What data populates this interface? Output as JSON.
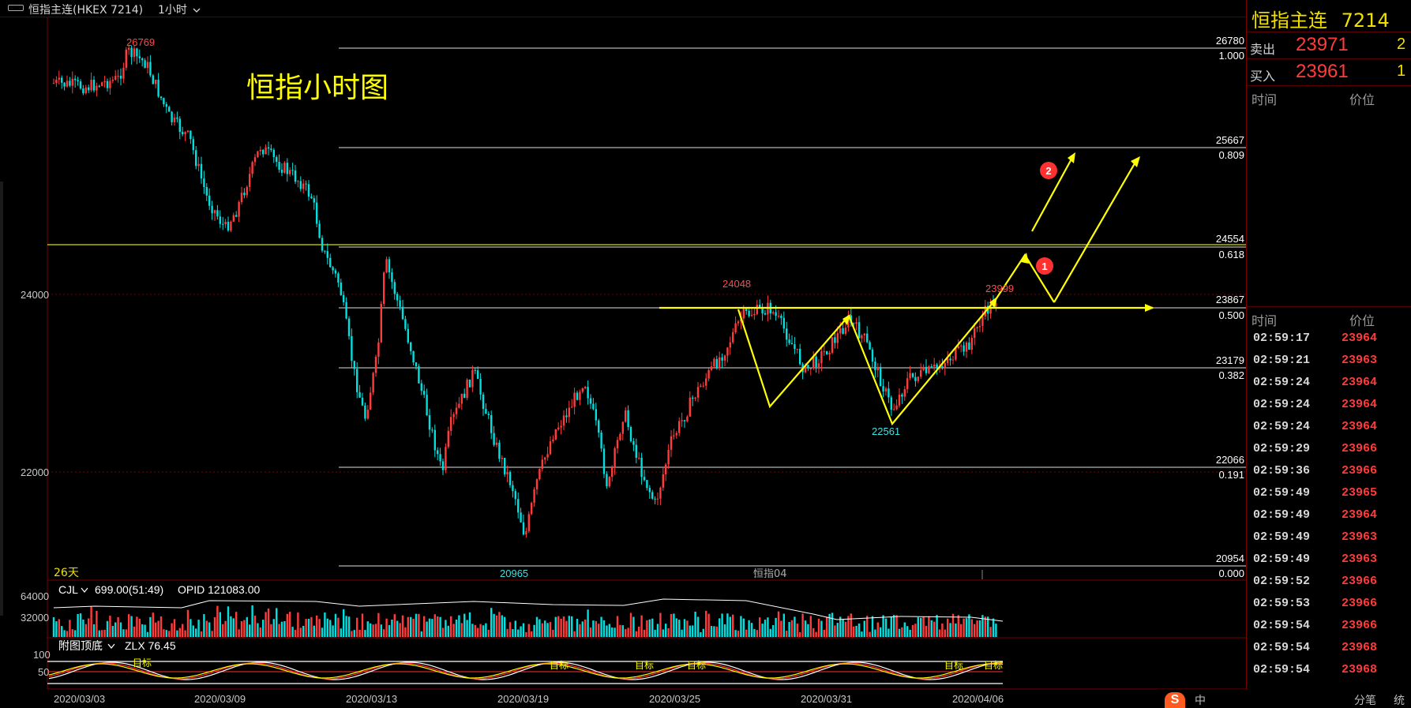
{
  "window": {
    "symbol_title": "恒指主连(HKEX 7214)",
    "period_label": "1小时",
    "period_dropdown_icon": "chevron-down-icon"
  },
  "chart_label": "恒指小时图",
  "colors": {
    "background": "#000000",
    "up_candle": "#ff3b3b",
    "down_candle": "#00e0e0",
    "annotation": "#ffff00",
    "fib_line": "#ffffff",
    "grid_red": "#7a0000",
    "ma_line": "#ffffff"
  },
  "price_axis": {
    "ticks": [
      "24000",
      "22000"
    ],
    "tick_values": [
      24000,
      22000
    ]
  },
  "time_axis": {
    "labels": [
      "2020/03/03",
      "2020/03/09",
      "2020/03/13",
      "2020/03/19",
      "2020/03/25",
      "2020/03/31",
      "2020/04/06"
    ]
  },
  "fibonacci": [
    {
      "price": "26780",
      "ratio": "1.000",
      "value": 26780
    },
    {
      "price": "25667",
      "ratio": "0.809",
      "value": 25667
    },
    {
      "price": "24554",
      "ratio": "0.618",
      "value": 24554
    },
    {
      "price": "23867",
      "ratio": "0.500",
      "value": 23867
    },
    {
      "price": "23179",
      "ratio": "0.382",
      "value": 23179
    },
    {
      "price": "22066",
      "ratio": "0.191",
      "value": 22066
    },
    {
      "price": "20954",
      "ratio": "0.000",
      "value": 20954
    }
  ],
  "price_labels": {
    "high_label": "26769",
    "low_label": "20965",
    "peak_label": "24048",
    "trough_label": "22561",
    "last_label": "23999"
  },
  "markers": {
    "marker_1": "1",
    "marker_2": "2"
  },
  "chart_footer": {
    "days": "26天",
    "contract": "恒指04"
  },
  "volume_panel": {
    "indicator": "CJL",
    "info": "699.00(51:49)",
    "opid": "OPID 121083.00",
    "ticks": [
      "64000",
      "32000"
    ]
  },
  "sub_panel": {
    "indicator": "附图顶底",
    "zlx": "ZLX 76.45",
    "ticks": [
      "100",
      "50"
    ],
    "marker_text": "目标"
  },
  "quote_panel": {
    "title": "恒指主连",
    "code": "7214",
    "sell_label": "卖出",
    "sell_price": "23971",
    "sell_extra": "2",
    "buy_label": "买入",
    "buy_price": "23961",
    "buy_extra": "1",
    "col_time": "时间",
    "col_price": "价位"
  },
  "tick_list": {
    "col_time": "时间",
    "col_price": "价位",
    "rows": [
      {
        "time": "02:59:17",
        "price": "23964"
      },
      {
        "time": "02:59:21",
        "price": "23963"
      },
      {
        "time": "02:59:24",
        "price": "23964"
      },
      {
        "time": "02:59:24",
        "price": "23964"
      },
      {
        "time": "02:59:24",
        "price": "23964"
      },
      {
        "time": "02:59:29",
        "price": "23966"
      },
      {
        "time": "02:59:36",
        "price": "23966"
      },
      {
        "time": "02:59:49",
        "price": "23965"
      },
      {
        "time": "02:59:49",
        "price": "23964"
      },
      {
        "time": "02:59:49",
        "price": "23963"
      },
      {
        "time": "02:59:49",
        "price": "23963"
      },
      {
        "time": "02:59:52",
        "price": "23966"
      },
      {
        "time": "02:59:53",
        "price": "23966"
      },
      {
        "time": "02:59:54",
        "price": "23966"
      },
      {
        "time": "02:59:54",
        "price": "23968"
      },
      {
        "time": "02:59:54",
        "price": "23968"
      }
    ]
  },
  "bottom_tabs": {
    "logo": "S",
    "tab_1": "中",
    "tab_2": "分笔",
    "tab_3": "统"
  }
}
